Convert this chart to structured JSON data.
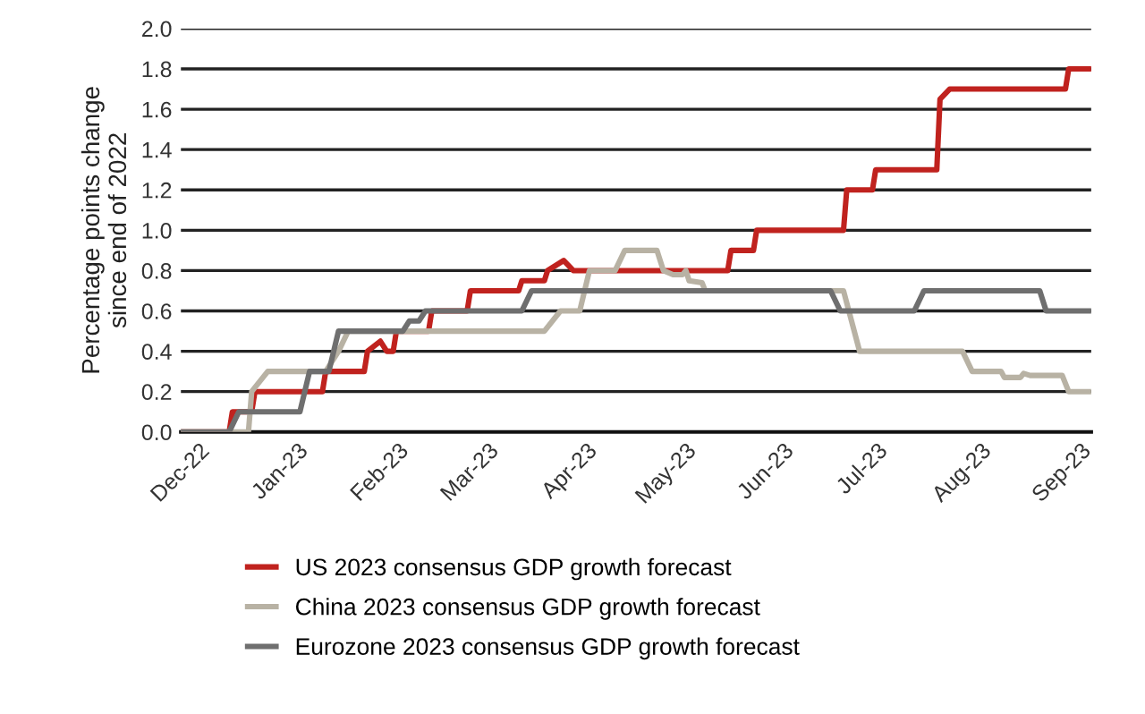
{
  "chart_data": {
    "type": "line",
    "ylabel": "Percentage points change\nsince end of 2022",
    "xlim": [
      "2022-12-01",
      "2023-09-10"
    ],
    "xticks": [
      {
        "value": "2022-12-01",
        "label": "Dec-22"
      },
      {
        "value": "2023-01-01",
        "label": "Jan-23"
      },
      {
        "value": "2023-02-01",
        "label": "Feb-23"
      },
      {
        "value": "2023-03-01",
        "label": "Mar-23"
      },
      {
        "value": "2023-04-01",
        "label": "Apr-23"
      },
      {
        "value": "2023-05-01",
        "label": "May-23"
      },
      {
        "value": "2023-06-01",
        "label": "Jun-23"
      },
      {
        "value": "2023-07-01",
        "label": "Jul-23"
      },
      {
        "value": "2023-08-01",
        "label": "Aug-23"
      },
      {
        "value": "2023-09-01",
        "label": "Sep-23"
      }
    ],
    "ylim": [
      0,
      2.0
    ],
    "yticks": [
      {
        "value": 0,
        "label": "0.0"
      },
      {
        "value": 0.2,
        "label": "0.2"
      },
      {
        "value": 0.4,
        "label": "0.4"
      },
      {
        "value": 0.6,
        "label": "0.6"
      },
      {
        "value": 0.8,
        "label": "0.8"
      },
      {
        "value": 1.0,
        "label": "1.0"
      },
      {
        "value": 1.2,
        "label": "1.2"
      },
      {
        "value": 1.4,
        "label": "1.4"
      },
      {
        "value": 1.6,
        "label": "1.6"
      },
      {
        "value": 1.8,
        "label": "1.8"
      },
      {
        "value": 2.0,
        "label": "2.0"
      }
    ],
    "grid": "y",
    "legend": "bottom",
    "marker": "none",
    "line_style": "solid",
    "series": [
      {
        "name": "US 2023 consensus GDP growth forecast",
        "color": "#c0221e",
        "x": [
          "2022-12-01",
          "2022-12-16",
          "2022-12-17",
          "2022-12-23",
          "2022-12-24",
          "2023-01-14",
          "2023-01-15",
          "2023-01-27",
          "2023-01-28",
          "2023-02-01",
          "2023-02-03",
          "2023-02-05",
          "2023-02-06",
          "2023-02-16",
          "2023-02-17",
          "2023-02-28",
          "2023-03-01",
          "2023-03-16",
          "2023-03-17",
          "2023-03-24",
          "2023-03-25",
          "2023-03-30",
          "2023-04-02",
          "2023-05-20",
          "2023-05-21",
          "2023-05-28",
          "2023-05-29",
          "2023-06-25",
          "2023-06-26",
          "2023-07-04",
          "2023-07-05",
          "2023-07-24",
          "2023-07-25",
          "2023-07-28",
          "2023-09-02",
          "2023-09-03",
          "2023-09-10"
        ],
        "values": [
          0,
          0,
          0.1,
          0.1,
          0.2,
          0.2,
          0.3,
          0.3,
          0.4,
          0.45,
          0.4,
          0.4,
          0.5,
          0.5,
          0.6,
          0.6,
          0.7,
          0.7,
          0.75,
          0.75,
          0.8,
          0.85,
          0.8,
          0.8,
          0.9,
          0.9,
          1.0,
          1.0,
          1.2,
          1.2,
          1.3,
          1.3,
          1.65,
          1.7,
          1.7,
          1.8,
          1.8
        ]
      },
      {
        "name": "China 2023 consensus GDP growth forecast",
        "color": "#b8b2a4",
        "x": [
          "2022-12-01",
          "2022-12-22",
          "2022-12-23",
          "2022-12-28",
          "2023-01-15",
          "2023-01-17",
          "2023-01-19",
          "2023-01-22",
          "2023-03-24",
          "2023-03-29",
          "2023-04-04",
          "2023-04-07",
          "2023-04-15",
          "2023-04-18",
          "2023-04-28",
          "2023-04-30",
          "2023-05-03",
          "2023-05-06",
          "2023-05-07",
          "2023-05-08",
          "2023-05-12",
          "2023-05-13",
          "2023-06-25",
          "2023-06-30",
          "2023-08-01",
          "2023-08-04",
          "2023-08-13",
          "2023-08-14",
          "2023-08-19",
          "2023-08-20",
          "2023-08-22",
          "2023-09-01",
          "2023-09-03",
          "2023-09-10"
        ],
        "values": [
          0,
          0,
          0.2,
          0.3,
          0.3,
          0.35,
          0.4,
          0.5,
          0.5,
          0.6,
          0.6,
          0.8,
          0.8,
          0.9,
          0.9,
          0.8,
          0.78,
          0.78,
          0.8,
          0.75,
          0.74,
          0.7,
          0.7,
          0.4,
          0.4,
          0.3,
          0.3,
          0.27,
          0.27,
          0.29,
          0.28,
          0.28,
          0.2,
          0.2
        ]
      },
      {
        "name": "Eurozone 2023 consensus GDP growth forecast",
        "color": "#6f6f6f",
        "x": [
          "2022-12-01",
          "2022-12-16",
          "2022-12-19",
          "2023-01-07",
          "2023-01-10",
          "2023-01-16",
          "2023-01-19",
          "2023-02-08",
          "2023-02-10",
          "2023-02-13",
          "2023-02-15",
          "2023-03-17",
          "2023-03-20",
          "2023-06-21",
          "2023-06-24",
          "2023-07-17",
          "2023-07-20",
          "2023-08-25",
          "2023-08-27",
          "2023-09-10"
        ],
        "values": [
          0,
          0,
          0.1,
          0.1,
          0.3,
          0.3,
          0.5,
          0.5,
          0.55,
          0.55,
          0.6,
          0.6,
          0.7,
          0.7,
          0.6,
          0.6,
          0.7,
          0.7,
          0.6,
          0.6
        ]
      }
    ]
  }
}
